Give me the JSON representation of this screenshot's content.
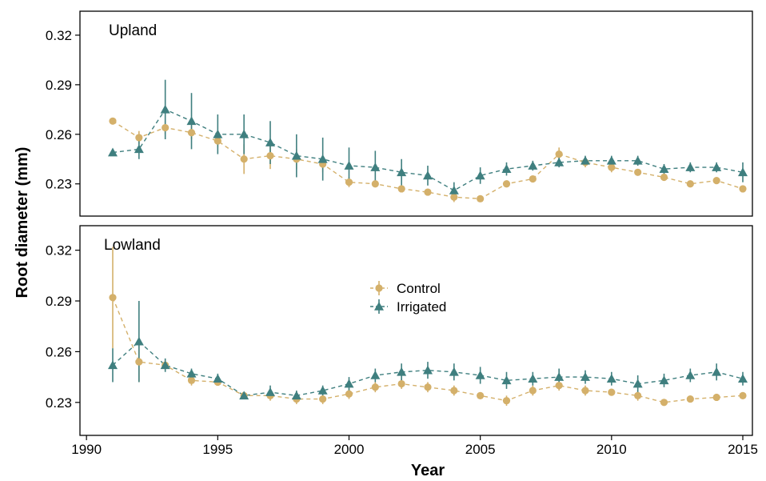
{
  "chart_data": {
    "type": "line",
    "xlabel": "Year",
    "ylabel": "Root diameter (mm)",
    "colors": {
      "Control": "#d4b06a",
      "Irrigated": "#3f7f7f"
    },
    "legend": {
      "placement": "inside-lower-panel-center",
      "entries": [
        {
          "name": "Control",
          "marker": "circle"
        },
        {
          "name": "Irrigated",
          "marker": "triangle"
        }
      ]
    },
    "x_ticks": [
      "1990",
      "1995",
      "2000",
      "2005",
      "2010",
      "2015"
    ],
    "x_range": [
      1990,
      2015.8
    ],
    "panels": [
      {
        "label": "Upland",
        "ylim": [
          0.2105,
          0.3345
        ],
        "y_ticks": [
          "0.23",
          "0.26",
          "0.29",
          "0.32"
        ],
        "series": [
          {
            "name": "Control",
            "x": [
              1991,
              1992,
              1993,
              1994,
              1995,
              1996,
              1997,
              1998,
              1999,
              2000,
              2001,
              2002,
              2003,
              2004,
              2005,
              2006,
              2007,
              2008,
              2009,
              2010,
              2011,
              2012,
              2013,
              2014,
              2015
            ],
            "y": [
              0.268,
              0.258,
              0.264,
              0.261,
              0.256,
              0.245,
              0.247,
              0.245,
              0.242,
              0.231,
              0.23,
              0.227,
              0.225,
              0.222,
              0.221,
              0.23,
              0.233,
              0.248,
              0.243,
              0.24,
              0.237,
              0.234,
              0.23,
              0.232,
              0.227
            ],
            "err": [
              0.0015,
              0.004,
              0.004,
              0.004,
              0.004,
              0.009,
              0.008,
              0.006,
              0.005,
              0.003,
              0.002,
              0.002,
              0.002,
              0.003,
              0.0015,
              0.002,
              0.002,
              0.004,
              0.003,
              0.003,
              0.002,
              0.002,
              0.002,
              0.002,
              0.002
            ]
          },
          {
            "name": "Irrigated",
            "x": [
              1991,
              1992,
              1993,
              1994,
              1995,
              1996,
              1997,
              1998,
              1999,
              2000,
              2001,
              2002,
              2003,
              2004,
              2005,
              2006,
              2007,
              2008,
              2009,
              2010,
              2011,
              2012,
              2013,
              2014,
              2015
            ],
            "y": [
              0.249,
              0.251,
              0.275,
              0.268,
              0.26,
              0.26,
              0.255,
              0.247,
              0.245,
              0.241,
              0.24,
              0.237,
              0.235,
              0.226,
              0.235,
              0.239,
              0.241,
              0.243,
              0.244,
              0.244,
              0.244,
              0.239,
              0.24,
              0.24,
              0.237
            ],
            "err": [
              0.001,
              0.006,
              0.018,
              0.017,
              0.012,
              0.012,
              0.013,
              0.013,
              0.013,
              0.011,
              0.01,
              0.008,
              0.006,
              0.005,
              0.005,
              0.004,
              0.003,
              0.003,
              0.003,
              0.003,
              0.003,
              0.003,
              0.003,
              0.003,
              0.006
            ]
          }
        ]
      },
      {
        "label": "Lowland",
        "ylim": [
          0.2105,
          0.3345
        ],
        "y_ticks": [
          "0.23",
          "0.26",
          "0.29",
          "0.32"
        ],
        "series": [
          {
            "name": "Control",
            "x": [
              1991,
              1992,
              1993,
              1994,
              1995,
              1996,
              1997,
              1998,
              1999,
              2000,
              2001,
              2002,
              2003,
              2004,
              2005,
              2006,
              2007,
              2008,
              2009,
              2010,
              2011,
              2012,
              2013,
              2014,
              2015
            ],
            "y": [
              0.292,
              0.254,
              0.252,
              0.243,
              0.242,
              0.234,
              0.234,
              0.232,
              0.232,
              0.235,
              0.239,
              0.241,
              0.239,
              0.237,
              0.234,
              0.231,
              0.237,
              0.24,
              0.237,
              0.236,
              0.234,
              0.23,
              0.232,
              0.233,
              0.234
            ],
            "err": [
              0.03,
              0.012,
              0.003,
              0.003,
              0.002,
              0.002,
              0.003,
              0.003,
              0.003,
              0.003,
              0.003,
              0.003,
              0.003,
              0.003,
              0.002,
              0.003,
              0.003,
              0.003,
              0.003,
              0.002,
              0.003,
              0.002,
              0.002,
              0.002,
              0.002
            ]
          },
          {
            "name": "Irrigated",
            "x": [
              1991,
              1992,
              1993,
              1994,
              1995,
              1996,
              1997,
              1998,
              1999,
              2000,
              2001,
              2002,
              2003,
              2004,
              2005,
              2006,
              2007,
              2008,
              2009,
              2010,
              2011,
              2012,
              2013,
              2014,
              2015
            ],
            "y": [
              0.252,
              0.266,
              0.252,
              0.247,
              0.244,
              0.234,
              0.236,
              0.234,
              0.237,
              0.241,
              0.246,
              0.248,
              0.249,
              0.248,
              0.246,
              0.243,
              0.244,
              0.245,
              0.245,
              0.244,
              0.241,
              0.243,
              0.246,
              0.248,
              0.244
            ],
            "err": [
              0.01,
              0.024,
              0.004,
              0.003,
              0.003,
              0.002,
              0.004,
              0.003,
              0.003,
              0.004,
              0.004,
              0.005,
              0.005,
              0.005,
              0.005,
              0.005,
              0.004,
              0.005,
              0.004,
              0.004,
              0.005,
              0.004,
              0.004,
              0.005,
              0.004
            ]
          }
        ]
      }
    ]
  }
}
